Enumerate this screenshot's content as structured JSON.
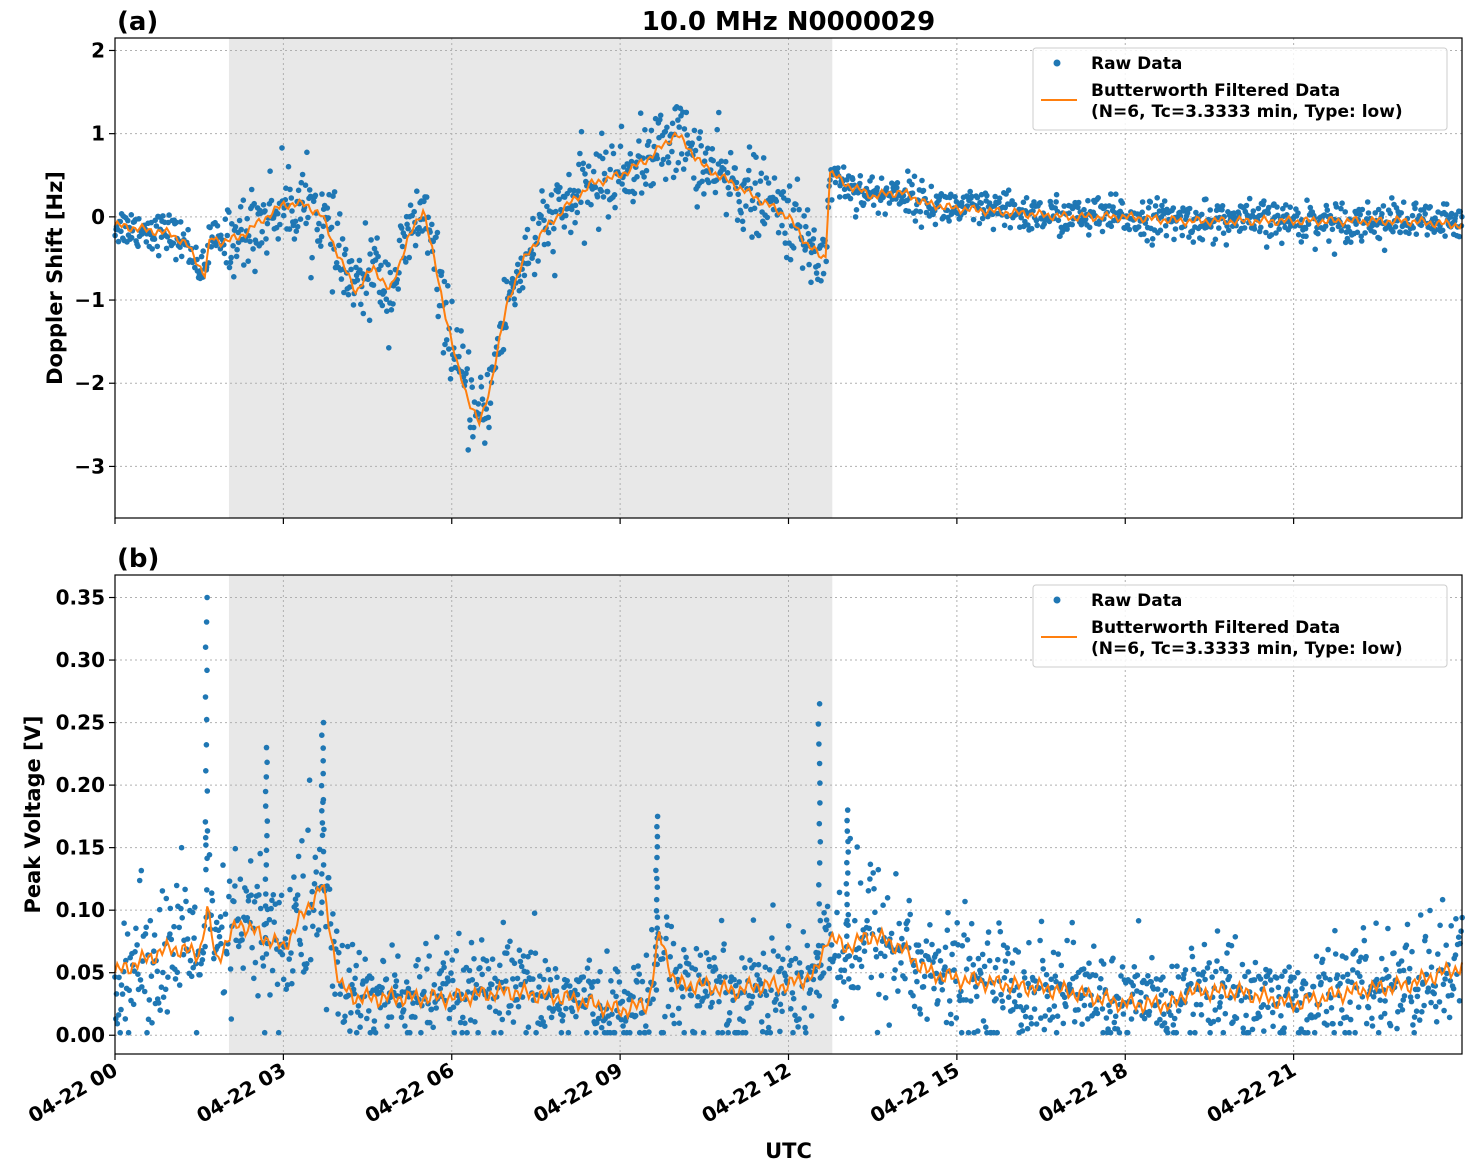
{
  "figure": {
    "title": "10.0 MHz N0000029",
    "xlabel": "UTC",
    "x_tick_labels": [
      "04-22 00",
      "04-22 03",
      "04-22 06",
      "04-22 09",
      "04-22 12",
      "04-22 15",
      "04-22 18",
      "04-22 21"
    ]
  },
  "colors": {
    "raw": "#1f77b4",
    "filtered": "#ff7f0e",
    "shade": "#e8e8e8"
  },
  "chart_data": [
    {
      "type": "scatter",
      "panel_label": "(a)",
      "title": "10.0 MHz N0000029",
      "xlabel": "",
      "ylabel": "Doppler Shift [Hz]",
      "x_unit": "hours UTC since 04-22 00",
      "xlim": [
        0,
        24
      ],
      "ylim": [
        -3.62,
        2.15
      ],
      "y_ticks": [
        2,
        1,
        0,
        -1,
        -2,
        -3
      ],
      "y_tick_labels": [
        "2",
        "1",
        "0",
        "−1",
        "−2",
        "−3"
      ],
      "shaded_region_x": [
        2.03,
        12.78
      ],
      "grid": true,
      "legend": "top-right",
      "legend_entries": [
        "Raw Data",
        "Butterworth Filtered Data",
        "(N=6, Tc=3.3333 min, Type: low)"
      ],
      "series": [
        {
          "name": "Butterworth Filtered Data",
          "x": [
            0,
            0.5,
            1.0,
            1.3,
            1.6,
            1.7,
            1.9,
            2.2,
            2.6,
            3.0,
            3.4,
            3.7,
            4.0,
            4.3,
            4.6,
            4.9,
            5.2,
            5.5,
            5.8,
            6.1,
            6.3,
            6.5,
            6.7,
            7.0,
            7.3,
            7.6,
            8.0,
            8.5,
            9.0,
            9.5,
            10.0,
            10.5,
            11.0,
            11.5,
            12.0,
            12.3,
            12.6,
            12.68,
            12.72,
            13.0,
            13.5,
            14.0,
            14.5,
            15.0,
            16.0,
            17.0,
            18.0,
            19.0,
            20.0,
            21.0,
            22.0,
            23.0,
            24.0
          ],
          "y": [
            -0.1,
            -0.15,
            -0.2,
            -0.35,
            -0.7,
            -0.25,
            -0.3,
            -0.25,
            -0.05,
            0.15,
            0.15,
            0.0,
            -0.5,
            -0.9,
            -0.6,
            -0.9,
            -0.3,
            0.1,
            -0.9,
            -1.8,
            -2.2,
            -2.5,
            -2.0,
            -1.0,
            -0.5,
            -0.2,
            0.1,
            0.4,
            0.5,
            0.7,
            1.0,
            0.6,
            0.4,
            0.2,
            0.0,
            -0.3,
            -0.5,
            -0.45,
            0.55,
            0.4,
            0.25,
            0.3,
            0.15,
            0.1,
            0.05,
            0.0,
            0.0,
            -0.05,
            -0.05,
            -0.05,
            -0.05,
            -0.05,
            -0.1
          ]
        },
        {
          "name": "Raw Data",
          "noise": 0.12
        }
      ]
    },
    {
      "type": "scatter",
      "panel_label": "(b)",
      "title": "",
      "xlabel": "UTC",
      "ylabel": "Peak Voltage [V]",
      "x_unit": "hours UTC since 04-22 00",
      "xlim": [
        0,
        24
      ],
      "ylim": [
        -0.015,
        0.368
      ],
      "y_ticks": [
        0.0,
        0.05,
        0.1,
        0.15,
        0.2,
        0.25,
        0.3,
        0.35
      ],
      "y_tick_labels": [
        "0.00",
        "0.05",
        "0.10",
        "0.15",
        "0.20",
        "0.25",
        "0.30",
        "0.35"
      ],
      "shaded_region_x": [
        2.03,
        12.78
      ],
      "grid": true,
      "legend": "top-right",
      "legend_entries": [
        "Raw Data",
        "Butterworth Filtered Data",
        "(N=6, Tc=3.3333 min, Type: low)"
      ],
      "series": [
        {
          "name": "Butterworth Filtered Data",
          "x": [
            0,
            0.5,
            1.0,
            1.5,
            1.65,
            1.8,
            2.2,
            2.6,
            3.0,
            3.4,
            3.7,
            4.0,
            4.3,
            5.0,
            6.0,
            7.0,
            8.0,
            9.0,
            9.5,
            9.7,
            10.0,
            10.5,
            11.0,
            11.5,
            12.0,
            12.5,
            12.7,
            13.0,
            13.5,
            14.0,
            14.5,
            15.0,
            16.0,
            17.0,
            18.0,
            18.9,
            19.1,
            20.0,
            21.0,
            22.0,
            23.0,
            24.0
          ],
          "y": [
            0.05,
            0.06,
            0.07,
            0.065,
            0.1,
            0.06,
            0.09,
            0.08,
            0.07,
            0.1,
            0.12,
            0.04,
            0.03,
            0.03,
            0.03,
            0.035,
            0.03,
            0.02,
            0.025,
            0.08,
            0.04,
            0.04,
            0.035,
            0.04,
            0.04,
            0.05,
            0.08,
            0.07,
            0.08,
            0.07,
            0.05,
            0.045,
            0.04,
            0.035,
            0.025,
            0.025,
            0.035,
            0.035,
            0.025,
            0.035,
            0.04,
            0.055
          ]
        },
        {
          "name": "Raw Data",
          "noise": 0.025,
          "spikes": [
            {
              "x": 1.63,
              "y": 0.35
            },
            {
              "x": 3.7,
              "y": 0.25
            },
            {
              "x": 2.7,
              "y": 0.23
            },
            {
              "x": 12.55,
              "y": 0.265
            },
            {
              "x": 9.65,
              "y": 0.175
            },
            {
              "x": 13.05,
              "y": 0.18
            }
          ]
        }
      ]
    }
  ]
}
